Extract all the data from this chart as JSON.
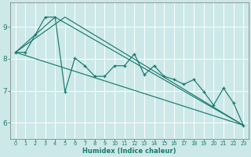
{
  "background_color": "#cde8e8",
  "grid_color": "#ffffff",
  "line_color": "#1a7a6e",
  "xlabel": "Humidex (Indice chaleur)",
  "xlim": [
    -0.5,
    23.5
  ],
  "ylim": [
    5.5,
    9.75
  ],
  "yticks": [
    6,
    7,
    8,
    9
  ],
  "xticks": [
    0,
    1,
    2,
    3,
    4,
    5,
    6,
    7,
    8,
    9,
    10,
    11,
    12,
    13,
    14,
    15,
    16,
    17,
    18,
    19,
    20,
    21,
    22,
    23
  ],
  "main_line": {
    "x": [
      0,
      1,
      2,
      3,
      4,
      5,
      6,
      7,
      8,
      9,
      10,
      11,
      12,
      13,
      14,
      15,
      16,
      17,
      18,
      19,
      20,
      21,
      22,
      23
    ],
    "y": [
      8.2,
      8.2,
      8.75,
      9.3,
      9.3,
      6.97,
      8.02,
      7.78,
      7.45,
      7.45,
      7.78,
      7.78,
      8.15,
      7.5,
      7.78,
      7.45,
      7.35,
      7.2,
      7.35,
      6.97,
      6.55,
      7.08,
      6.62,
      5.92
    ]
  },
  "line1": {
    "x": [
      0,
      23
    ],
    "y": [
      8.2,
      5.92
    ]
  },
  "line2": {
    "x": [
      0,
      4,
      23
    ],
    "y": [
      8.2,
      9.3,
      5.92
    ]
  },
  "line3": {
    "x": [
      0,
      5,
      23
    ],
    "y": [
      8.2,
      9.3,
      5.92
    ]
  }
}
